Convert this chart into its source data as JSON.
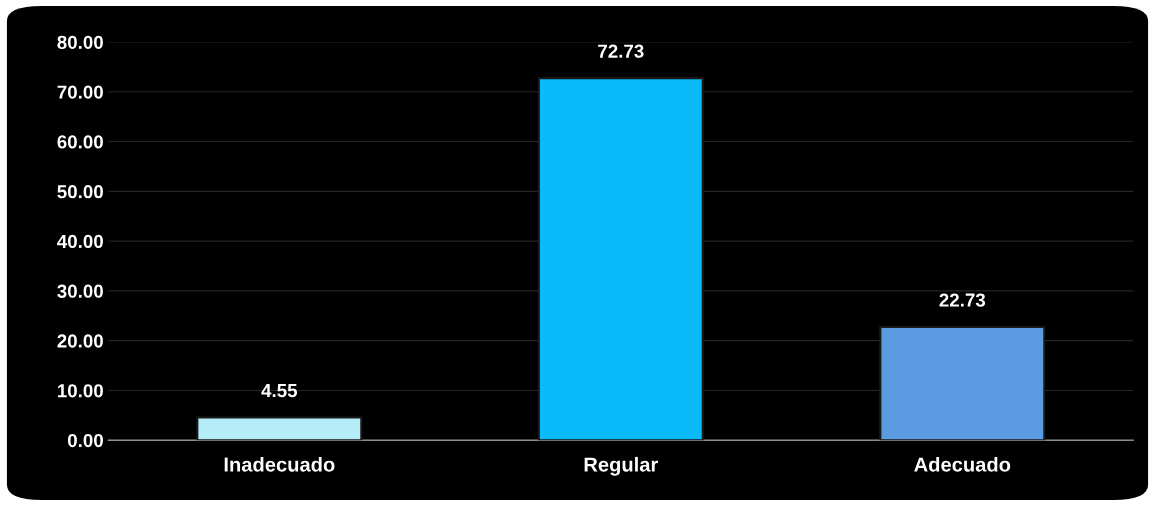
{
  "chart_data": {
    "type": "bar",
    "categories": [
      "Inadecuado",
      "Regular",
      "Adecuado"
    ],
    "values": [
      4.55,
      72.73,
      22.73
    ],
    "colors": [
      "#b4ecf8",
      "#0bbaf8",
      "#5a9be2"
    ],
    "ylim": [
      0,
      80
    ],
    "yticks": [
      {
        "value": 0,
        "label": "0.00"
      },
      {
        "value": 10,
        "label": "10.00"
      },
      {
        "value": 20,
        "label": "20.00"
      },
      {
        "value": 30,
        "label": "30.00"
      },
      {
        "value": 40,
        "label": "40.00"
      },
      {
        "value": 50,
        "label": "50.00"
      },
      {
        "value": 60,
        "label": "60.00"
      },
      {
        "value": 70,
        "label": "70.00"
      },
      {
        "value": 80,
        "label": "80.00"
      }
    ],
    "grid": "y",
    "data_labels": true
  }
}
